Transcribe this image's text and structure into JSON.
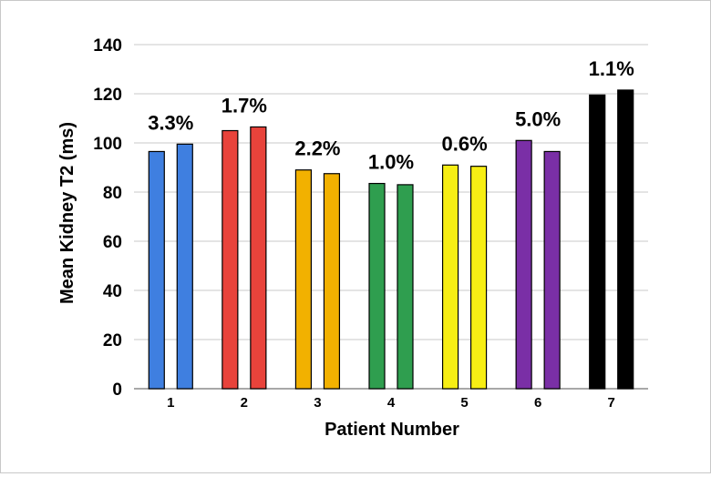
{
  "chart_data": {
    "type": "bar",
    "title": "",
    "xlabel": "Patient Number",
    "ylabel": "Mean Kidney T2 (ms)",
    "ylim": [
      0,
      140
    ],
    "yticks": [
      0,
      20,
      40,
      60,
      80,
      100,
      120,
      140
    ],
    "grid": true,
    "legend": "none",
    "categories": [
      "1",
      "2",
      "3",
      "4",
      "5",
      "6",
      "7"
    ],
    "colors": [
      "#3f7fe0",
      "#e8433b",
      "#f2b100",
      "#2f9e4f",
      "#f7ee14",
      "#7a2fa6",
      "#000000"
    ],
    "series": [
      {
        "values": [
          96.5,
          105,
          89,
          83.5,
          91,
          101,
          119.5
        ]
      },
      {
        "values": [
          99.5,
          106.5,
          87.5,
          83,
          90.5,
          96.5,
          121.5
        ]
      }
    ],
    "annotations": [
      "3.3%",
      "1.7%",
      "2.2%",
      "1.0%",
      "0.6%",
      "5.0%",
      "1.1%"
    ]
  }
}
